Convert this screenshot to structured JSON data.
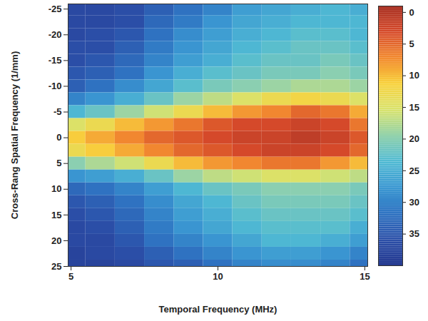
{
  "chart_data": {
    "type": "heatmap",
    "x_label": "Temporal Frequency (MHz)",
    "y_label": "Cross-Rang Spatial Frequency (1/mm)",
    "x": [
      5,
      6,
      7,
      8,
      9,
      10,
      11,
      12,
      13,
      14,
      15
    ],
    "y": [
      -25,
      -22.5,
      -20,
      -17.5,
      -15,
      -12.5,
      -10,
      -7.5,
      -5,
      -2.5,
      0,
      2.5,
      5,
      7.5,
      10,
      12.5,
      15,
      17.5,
      20,
      22.5,
      25
    ],
    "z": [
      [
        37,
        37,
        36,
        34,
        32,
        30,
        27,
        26,
        25,
        24,
        25
      ],
      [
        37,
        37,
        36,
        33,
        31,
        28,
        26,
        25,
        24,
        24,
        24
      ],
      [
        37,
        36,
        35,
        32,
        29,
        27,
        25,
        24,
        23,
        23,
        24
      ],
      [
        36,
        36,
        34,
        31,
        28,
        26,
        24,
        23,
        22,
        22,
        23
      ],
      [
        36,
        35,
        33,
        30,
        27,
        25,
        23,
        22,
        22,
        21,
        22
      ],
      [
        35,
        34,
        32,
        28,
        25,
        23,
        22,
        21,
        21,
        20,
        21
      ],
      [
        34,
        32,
        29,
        26,
        23,
        21,
        20,
        19,
        18,
        18,
        19
      ],
      [
        30,
        28,
        25,
        22,
        19,
        17,
        15,
        13,
        12,
        13,
        15
      ],
      [
        24,
        22,
        19,
        16,
        13,
        10,
        8,
        7,
        5,
        6,
        9
      ],
      [
        15,
        13,
        10,
        8,
        6,
        4,
        3,
        3,
        2,
        3,
        6
      ],
      [
        11,
        9,
        7,
        5,
        4,
        3,
        2,
        2,
        1,
        2,
        4
      ],
      [
        13,
        11,
        9,
        7,
        5,
        4,
        3,
        2,
        2,
        3,
        5
      ],
      [
        20,
        18,
        16,
        13,
        10,
        8,
        7,
        6,
        6,
        8,
        10
      ],
      [
        28,
        27,
        25,
        22,
        19,
        17,
        16,
        15,
        15,
        16,
        17
      ],
      [
        33,
        32,
        30,
        27,
        24,
        22,
        21,
        20,
        20,
        20,
        21
      ],
      [
        35,
        34,
        32,
        29,
        26,
        24,
        22,
        21,
        21,
        21,
        22
      ],
      [
        36,
        35,
        33,
        30,
        27,
        25,
        23,
        22,
        22,
        22,
        23
      ],
      [
        37,
        36,
        34,
        31,
        28,
        26,
        24,
        23,
        23,
        23,
        25
      ],
      [
        37,
        37,
        35,
        32,
        30,
        28,
        26,
        24,
        24,
        25,
        27
      ],
      [
        38,
        37,
        36,
        34,
        32,
        30,
        28,
        27,
        27,
        28,
        30
      ],
      [
        38,
        38,
        37,
        35,
        34,
        32,
        30,
        29,
        29,
        30,
        32
      ]
    ],
    "xlim": [
      4.9,
      15.1
    ],
    "ylim": [
      -26,
      25
    ],
    "xticks": [
      5,
      10,
      15
    ],
    "yticks": [
      -25,
      -20,
      -15,
      -10,
      -5,
      0,
      5,
      10,
      15,
      20,
      25
    ],
    "colorbar": {
      "range": [
        -1,
        40
      ],
      "ticks": [
        0,
        5,
        10,
        15,
        20,
        25,
        30,
        35
      ]
    }
  }
}
